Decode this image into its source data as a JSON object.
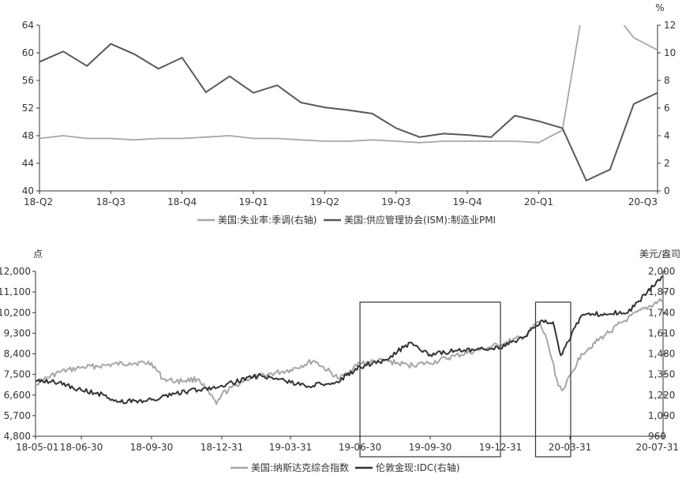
{
  "chart_data": [
    {
      "type": "line",
      "x": [
        "18-Q2",
        "",
        "",
        "18-Q3",
        "",
        "",
        "18-Q4",
        "",
        "",
        "19-Q1",
        "",
        "",
        "19-Q2",
        "",
        "",
        "19-Q3",
        "",
        "",
        "19-Q4",
        "",
        "",
        "20-Q1",
        "",
        "",
        "",
        "",
        "20-Q3"
      ],
      "xtick_labels": [
        "18-Q2",
        "18-Q3",
        "18-Q4",
        "19-Q1",
        "19-Q2",
        "19-Q3",
        "19-Q4",
        "20-Q1",
        "20-Q3"
      ],
      "y_left": {
        "ticks": [
          "40",
          "44",
          "48",
          "52",
          "56",
          "60",
          "64"
        ],
        "ylim": [
          40,
          64
        ]
      },
      "y_right": {
        "unit": "%",
        "ticks": [
          "0",
          "2",
          "4",
          "6",
          "8",
          "10",
          "12"
        ],
        "ylim": [
          0,
          12
        ]
      },
      "series": [
        {
          "name": "美国:失业率:季调(右轴)",
          "axis": "right",
          "color": "#a6a6a6",
          "values": [
            3.8,
            4.0,
            3.8,
            3.8,
            3.7,
            3.8,
            3.8,
            3.9,
            4.0,
            3.8,
            3.8,
            3.7,
            3.6,
            3.6,
            3.7,
            3.6,
            3.5,
            3.6,
            3.6,
            3.6,
            3.6,
            3.5,
            4.4,
            14.7,
            13.3,
            11.1,
            10.2
          ]
        },
        {
          "name": "美国:供应管理协会(ISM):制造业PMI",
          "axis": "left",
          "color": "#595959",
          "values": [
            58.7,
            60.2,
            58.1,
            61.3,
            59.8,
            57.7,
            59.3,
            54.3,
            56.6,
            54.2,
            55.3,
            52.8,
            52.1,
            51.7,
            51.2,
            49.1,
            47.8,
            48.3,
            48.1,
            47.8,
            50.9,
            50.1,
            49.1,
            41.5,
            43.1,
            52.6,
            54.2
          ]
        }
      ]
    },
    {
      "type": "line",
      "xtick_labels": [
        "18-05-01",
        "18-06-30",
        "18-09-30",
        "18-12-31",
        "19-03-31",
        "19-06-30",
        "19-09-30",
        "19-12-31",
        "20-03-31",
        "20-07-31"
      ],
      "y_left": {
        "unit": "点",
        "ticks": [
          "4,800",
          "5,700",
          "6,600",
          "7,500",
          "8,400",
          "9,300",
          "10,200",
          "11,100",
          "12,000"
        ],
        "ylim": [
          4800,
          12000
        ]
      },
      "y_right": {
        "unit": "美元/盎司",
        "ticks": [
          "960",
          "1,090",
          "1,220",
          "1,350",
          "1,480",
          "1,610",
          "1,740",
          "1,870",
          "2,000"
        ],
        "ylim": [
          960,
          2000
        ]
      },
      "series": [
        {
          "name": "美国:纳斯达克综合指数",
          "axis": "left",
          "color": "#a6a6a6",
          "x": [
            "18-05-01",
            "18-06-01",
            "18-06-30",
            "18-08-01",
            "18-09-01",
            "18-09-30",
            "18-10-15",
            "18-11-01",
            "18-12-01",
            "18-12-24",
            "18-12-31",
            "19-02-01",
            "19-03-31",
            "19-05-01",
            "19-06-03",
            "19-06-30",
            "19-08-01",
            "19-09-01",
            "19-09-30",
            "19-11-01",
            "19-12-31",
            "20-01-31",
            "20-02-19",
            "20-03-01",
            "20-03-16",
            "20-03-23",
            "20-04-15",
            "20-05-15",
            "20-06-15",
            "20-07-31"
          ],
          "values": [
            7100,
            7600,
            7800,
            7900,
            8000,
            8000,
            7300,
            7200,
            7300,
            6200,
            6630,
            7300,
            7700,
            8100,
            7300,
            8000,
            8100,
            7900,
            8000,
            8300,
            8800,
            9150,
            9800,
            9000,
            7000,
            6860,
            8400,
            9200,
            9950,
            10800
          ]
        },
        {
          "name": "伦敦金现:IDC(右轴)",
          "axis": "right",
          "color": "#333333",
          "x": [
            "18-05-01",
            "18-06-01",
            "18-06-30",
            "18-08-01",
            "18-08-16",
            "18-09-30",
            "18-11-01",
            "18-12-31",
            "19-02-20",
            "19-04-23",
            "19-05-31",
            "19-06-30",
            "19-08-01",
            "19-09-04",
            "19-09-30",
            "19-11-01",
            "19-12-31",
            "20-01-31",
            "20-02-24",
            "20-03-09",
            "20-03-19",
            "20-04-15",
            "20-05-15",
            "20-06-15",
            "20-07-31"
          ],
          "values": [
            1310,
            1300,
            1250,
            1220,
            1175,
            1190,
            1230,
            1280,
            1345,
            1275,
            1305,
            1400,
            1440,
            1550,
            1475,
            1500,
            1517,
            1585,
            1690,
            1680,
            1470,
            1720,
            1735,
            1740,
            1970
          ]
        }
      ],
      "highlight_boxes": [
        {
          "from": "19-06-30",
          "to": "19-12-31"
        },
        {
          "from": "20-02-15",
          "to": "20-04-01"
        }
      ]
    }
  ]
}
